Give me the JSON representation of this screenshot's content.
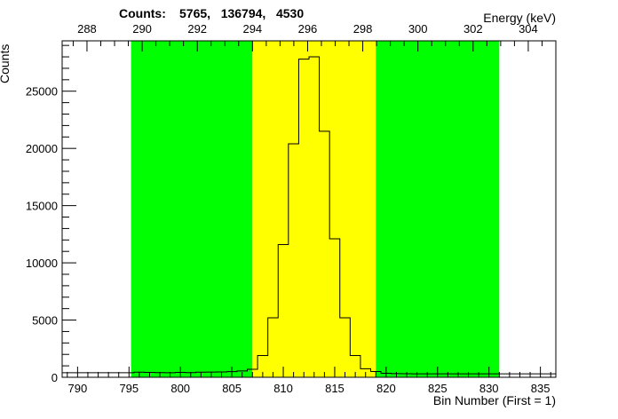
{
  "header": {
    "counts_label": "Counts:",
    "counts_values": "5765,   136794,   4530"
  },
  "chart_data": {
    "type": "histogram",
    "xlabel": "Bin Number (First = 1)",
    "ylabel": "Counts",
    "x2label": "Energy (keV)",
    "xlim": [
      788.5,
      836.5
    ],
    "ylim": [
      0,
      29400
    ],
    "x2lim": [
      287.1,
      305.0
    ],
    "xticks": [
      790,
      795,
      800,
      805,
      810,
      815,
      820,
      825,
      830,
      835
    ],
    "yticks": [
      0,
      5000,
      10000,
      15000,
      20000,
      25000
    ],
    "x2ticks": [
      288,
      290,
      292,
      294,
      296,
      298,
      300,
      302,
      304
    ],
    "regions": [
      {
        "name": "background-left",
        "x0": 795.2,
        "x1": 807.0,
        "color": "#00ff00"
      },
      {
        "name": "peak",
        "x0": 807.0,
        "x1": 819.0,
        "color": "#ffff00"
      },
      {
        "name": "background-right",
        "x0": 819.0,
        "x1": 831.0,
        "color": "#00ff00"
      }
    ],
    "bins": {
      "start": 788.5,
      "width": 1,
      "values": [
        400,
        400,
        400,
        400,
        400,
        400,
        400,
        450,
        430,
        410,
        400,
        430,
        410,
        450,
        460,
        470,
        490,
        550,
        700,
        1900,
        5200,
        11600,
        20400,
        27800,
        28000,
        21500,
        12100,
        5200,
        1900,
        750,
        500,
        350,
        320,
        310,
        300,
        300,
        300,
        300,
        300,
        300,
        300,
        300,
        300,
        300,
        300,
        300,
        300,
        300
      ]
    },
    "colors": {
      "line": "#000000",
      "green": "#00ff00",
      "yellow": "#ffff00"
    }
  }
}
